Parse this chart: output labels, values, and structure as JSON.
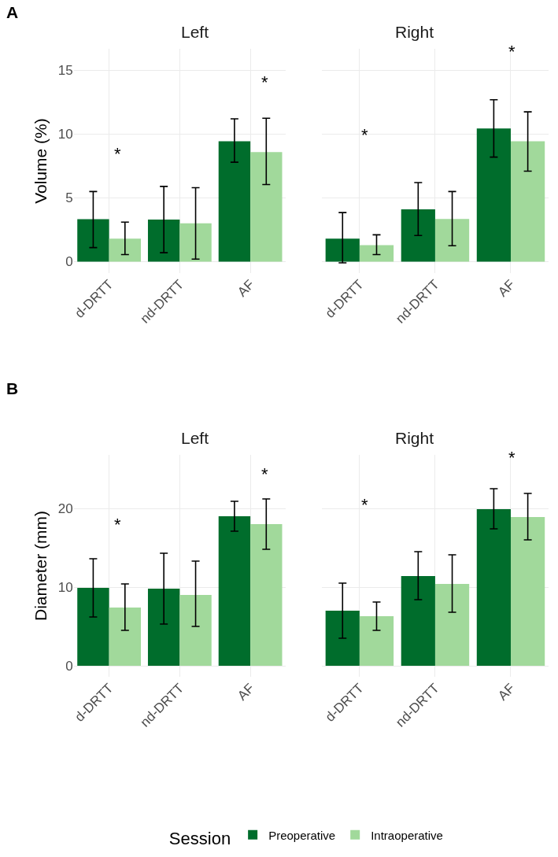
{
  "chart_data": [
    {
      "type": "bar",
      "title": "Left",
      "ylabel": "Volume (%)",
      "annotations": [
        "A",
        "*",
        "*"
      ],
      "categories": [
        "d-DRTT",
        "nd-DRTT",
        "AF"
      ],
      "series": [
        {
          "name": "Preoperative",
          "color": "#006d2c",
          "values": [
            3.33,
            3.3,
            9.45
          ],
          "errors": [
            [
              1.1,
              5.5
            ],
            [
              0.7,
              5.9
            ],
            [
              7.8,
              11.2
            ]
          ]
        },
        {
          "name": "Intraoperative",
          "color": "#a1d99b",
          "values": [
            1.8,
            3.0,
            8.6
          ],
          "errors": [
            [
              0.55,
              3.1
            ],
            [
              0.2,
              5.8
            ],
            [
              6.05,
              11.25
            ]
          ]
        }
      ],
      "ylim": [
        -0.9,
        16.7
      ],
      "yticks": [
        0,
        5,
        10,
        15
      ],
      "grid": true,
      "legend": "bottom"
    },
    {
      "type": "bar",
      "title": "Right",
      "annotations": [
        "*",
        "*"
      ],
      "categories": [
        "d-DRTT",
        "nd-DRTT",
        "AF"
      ],
      "series": [
        {
          "name": "Preoperative",
          "color": "#006d2c",
          "values": [
            1.8,
            4.1,
            10.45
          ],
          "errors": [
            [
              -0.1,
              3.85
            ],
            [
              2.05,
              6.2
            ],
            [
              8.2,
              12.7
            ]
          ]
        },
        {
          "name": "Intraoperative",
          "color": "#a1d99b",
          "values": [
            1.3,
            3.35,
            9.45
          ],
          "errors": [
            [
              0.55,
              2.1
            ],
            [
              1.25,
              5.5
            ],
            [
              7.1,
              11.75
            ]
          ]
        }
      ],
      "ylim": [
        -0.9,
        16.7
      ],
      "yticks": [
        0,
        5,
        10,
        15
      ],
      "grid": true,
      "legend": "bottom",
      "tick_labels": "x"
    },
    {
      "type": "bar",
      "title": "Left",
      "ylabel": "Diameter (mm)",
      "annotations": [
        "B",
        "*",
        "*"
      ],
      "categories": [
        "d-DRTT",
        "nd-DRTT",
        "AF"
      ],
      "series": [
        {
          "name": "Preoperative",
          "color": "#006d2c",
          "values": [
            9.9,
            9.8,
            19.0
          ],
          "errors": [
            [
              6.2,
              13.6
            ],
            [
              5.3,
              14.3
            ],
            [
              17.1,
              20.9
            ]
          ]
        },
        {
          "name": "Intraoperative",
          "color": "#a1d99b",
          "values": [
            7.4,
            9.0,
            18.0
          ],
          "errors": [
            [
              4.5,
              10.4
            ],
            [
              5.0,
              13.3
            ],
            [
              14.8,
              21.2
            ]
          ]
        }
      ],
      "ylim": [
        -1.4,
        26.8
      ],
      "yticks": [
        0,
        10,
        20
      ],
      "grid": true,
      "legend": "bottom"
    },
    {
      "type": "bar",
      "title": "Right",
      "legend_title": "Session",
      "annotations": [
        "*",
        "*"
      ],
      "categories": [
        "d-DRTT",
        "nd-DRTT",
        "AF"
      ],
      "series": [
        {
          "name": "Preoperative",
          "color": "#006d2c",
          "values": [
            7.0,
            11.4,
            19.9
          ],
          "errors": [
            [
              3.5,
              10.5
            ],
            [
              8.4,
              14.5
            ],
            [
              17.4,
              22.5
            ]
          ]
        },
        {
          "name": "Intraoperative",
          "color": "#a1d99b",
          "values": [
            6.3,
            10.4,
            18.9
          ],
          "errors": [
            [
              4.5,
              8.1
            ],
            [
              6.8,
              14.1
            ],
            [
              16.0,
              21.9
            ]
          ]
        }
      ],
      "ylim": [
        -1.4,
        26.8
      ],
      "yticks": [
        0,
        10,
        20
      ],
      "grid": true,
      "legend": "bottom",
      "tick_labels": "x"
    }
  ]
}
